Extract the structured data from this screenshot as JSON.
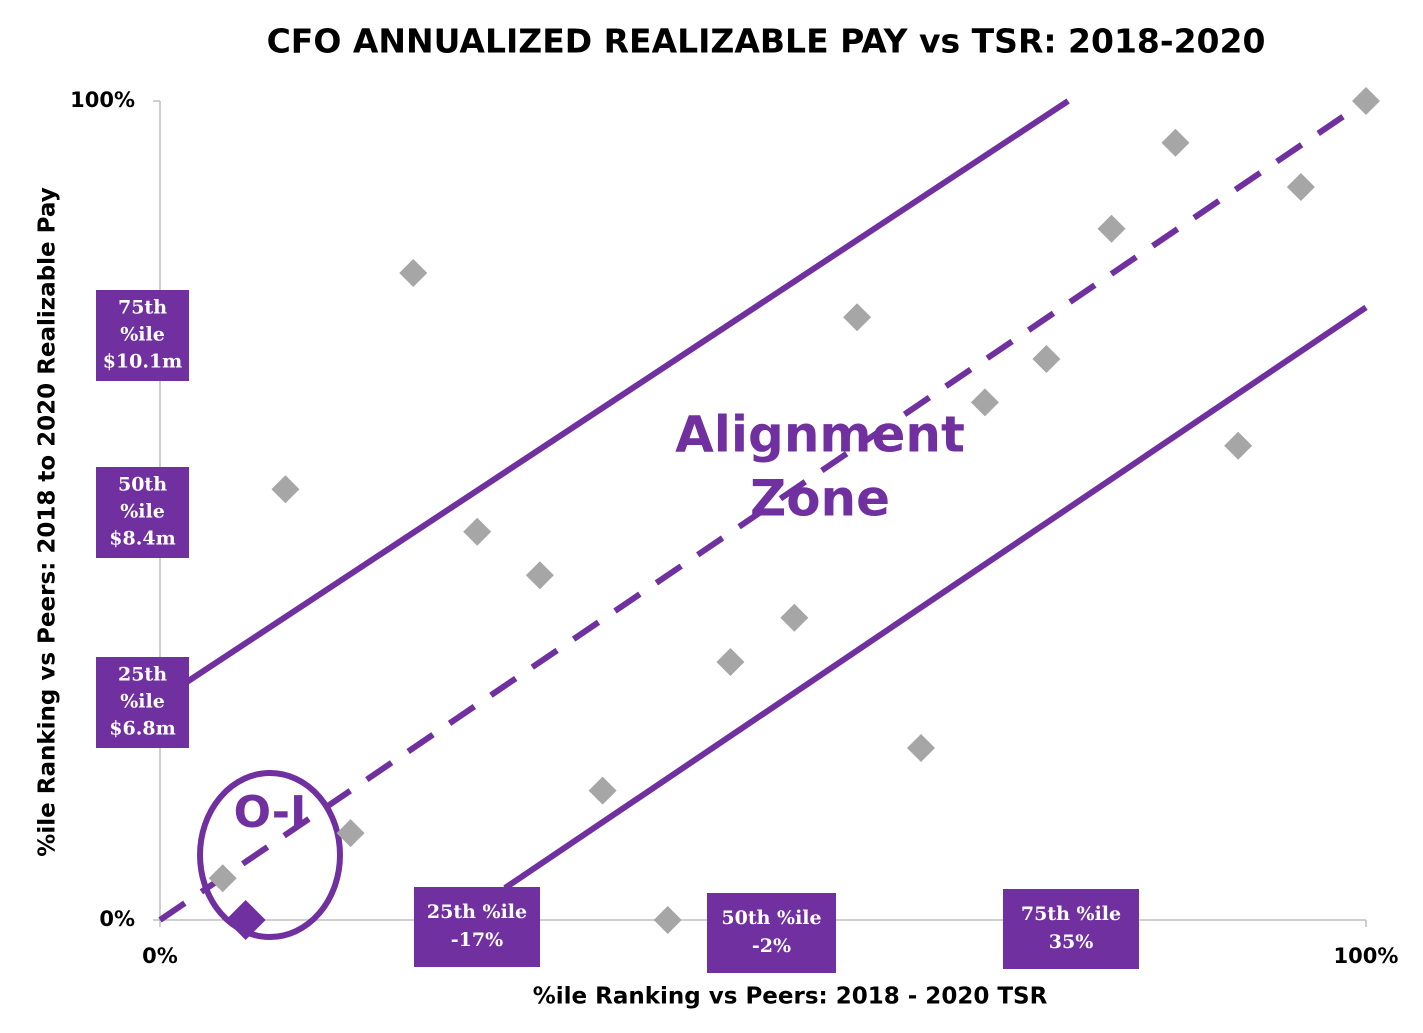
{
  "chart_data": {
    "type": "scatter",
    "title": "CFO ANNUALIZED REALIZABLE PAY vs TSR: 2018-2020",
    "x_label": "%ile Ranking vs Peers: 2018 - 2020 TSR",
    "y_label": "%ile Ranking vs Peers: 2018 to 2020 Realizable Pay",
    "xlim": [
      0,
      100
    ],
    "ylim": [
      0,
      100
    ],
    "xticks": [
      {
        "value": 0,
        "label": "0%"
      },
      {
        "value": 100,
        "label": "100%"
      }
    ],
    "yticks": [
      {
        "value": 0,
        "label": "0%"
      },
      {
        "value": 100,
        "label": "100%"
      }
    ],
    "grid": false,
    "series": [
      {
        "color": "#a6a6a6",
        "marker": "diamond",
        "x": [
          5.2,
          10.4,
          15.8,
          21.0,
          26.3,
          31.5,
          36.7,
          42.1,
          47.3,
          52.6,
          57.8,
          63.1,
          68.4,
          73.5,
          78.9,
          84.2,
          89.4,
          94.6,
          100
        ],
        "values": [
          5.1,
          52.6,
          10.6,
          79.0,
          47.4,
          42.1,
          15.8,
          0,
          31.5,
          36.9,
          73.6,
          21.0,
          63.2,
          68.5,
          84.4,
          94.9,
          57.9,
          89.5,
          100
        ]
      },
      {
        "color": "#7030a0",
        "marker": "diamond",
        "x": [
          7.1
        ],
        "values": [
          0
        ]
      }
    ],
    "reference_lines": [
      {
        "color": "#7030a0",
        "style": "solid",
        "x": [
          0,
          75.3
        ],
        "values": [
          26.9,
          100
        ]
      },
      {
        "color": "#7030a0",
        "style": "dashed",
        "x": [
          0,
          100
        ],
        "values": [
          0,
          100
        ]
      },
      {
        "color": "#7030a0",
        "style": "solid",
        "x": [
          28.6,
          100
        ],
        "values": [
          3.9,
          74.8
        ]
      }
    ],
    "y_boxes": [
      {
        "lines": [
          "75th",
          "%ile",
          "$10.1m"
        ]
      },
      {
        "lines": [
          "50th",
          "%ile",
          "$8.4m"
        ]
      },
      {
        "lines": [
          "25th",
          "%ile",
          "$6.8m"
        ]
      }
    ],
    "x_boxes": [
      {
        "lines": [
          "25th %ile",
          "-17%"
        ]
      },
      {
        "lines": [
          "50th %ile",
          "-2%"
        ]
      },
      {
        "lines": [
          "75th %ile",
          "35%"
        ]
      }
    ],
    "annotations": [
      {
        "lines": [
          "Alignment",
          "Zone"
        ]
      },
      {
        "lines": [
          "O-I"
        ]
      }
    ]
  }
}
